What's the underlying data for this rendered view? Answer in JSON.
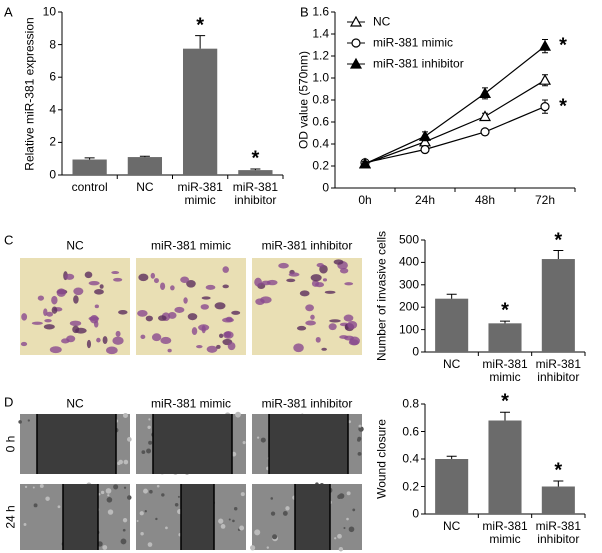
{
  "chart_data": [
    {
      "type": "bar",
      "panel": "A",
      "ylabel": "Relative miR-381 expression",
      "categories": [
        "control",
        "NC",
        "miR-381\nmimic",
        "miR-381\ninhibitor"
      ],
      "values": [
        0.95,
        1.1,
        7.75,
        0.3
      ],
      "errors": [
        0.1,
        0.05,
        0.8,
        0.07
      ],
      "significance": [
        null,
        null,
        "*",
        "*"
      ],
      "color": "#6b6b6b",
      "ylim": [
        0,
        10
      ],
      "yticks": [
        0,
        2,
        4,
        6,
        8,
        10
      ]
    },
    {
      "type": "line",
      "panel": "B",
      "ylabel": "OD value (570nm)",
      "categories": [
        "0h",
        "24h",
        "48h",
        "72h"
      ],
      "series": [
        {
          "name": "NC",
          "marker": "open-triangle",
          "color": "#000000",
          "values": [
            0.22,
            0.42,
            0.65,
            0.98
          ],
          "errors": [
            0.02,
            0.03,
            0.03,
            0.05
          ]
        },
        {
          "name": "miR-381 mimic",
          "marker": "open-circle",
          "color": "#000000",
          "values": [
            0.23,
            0.35,
            0.51,
            0.74
          ],
          "errors": [
            0.02,
            0.03,
            0.02,
            0.06
          ],
          "significance": "*"
        },
        {
          "name": "miR-381 inhibitor",
          "marker": "filled-triangle",
          "color": "#000000",
          "values": [
            0.22,
            0.47,
            0.86,
            1.29
          ],
          "errors": [
            0.02,
            0.04,
            0.05,
            0.06
          ],
          "significance": "*"
        }
      ],
      "ylim": [
        0,
        1.6
      ],
      "yticks": [
        0,
        0.2,
        0.4,
        0.6,
        0.8,
        {
          "value": 1,
          "label": "1.0"
        },
        1.2,
        1.4,
        1.6
      ]
    },
    {
      "type": "bar",
      "panel": "C",
      "ylabel": "Number of invasive cells",
      "image_labels": [
        "NC",
        "miR-381 mimic",
        "miR-381 inhibitor"
      ],
      "categories": [
        "NC",
        "miR-381\nmimic",
        "miR-381\ninhibitor"
      ],
      "values": [
        238,
        128,
        415
      ],
      "errors": [
        20,
        10,
        38
      ],
      "significance": [
        null,
        "*",
        "*"
      ],
      "color": "#6b6b6b",
      "ylim": [
        0,
        500
      ],
      "yticks": [
        0,
        100,
        200,
        300,
        400,
        500
      ]
    },
    {
      "type": "bar",
      "panel": "D",
      "ylabel": "Wound closure",
      "image_labels": [
        "NC",
        "miR-381 mimic",
        "miR-381 inhibitor"
      ],
      "image_rows": [
        "0 h",
        "24 h"
      ],
      "categories": [
        "NC",
        "miR-381\nmimic",
        "miR-381\ninhibitor"
      ],
      "values": [
        0.4,
        0.68,
        0.2
      ],
      "errors": [
        0.02,
        0.06,
        0.04
      ],
      "significance": [
        null,
        "*",
        "*"
      ],
      "color": "#6b6b6b",
      "ylim": [
        0,
        0.8
      ],
      "yticks": [
        0,
        0.2,
        0.4,
        0.6,
        0.8
      ]
    }
  ]
}
